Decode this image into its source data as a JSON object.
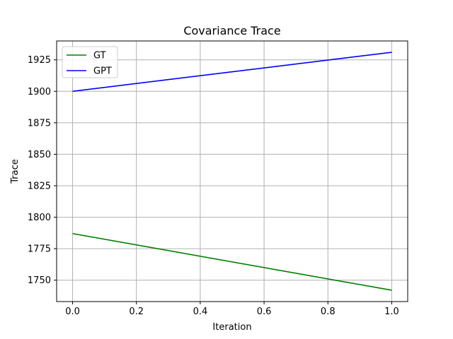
{
  "chart_data": {
    "type": "line",
    "title": "Covariance Trace",
    "xlabel": "Iteration",
    "ylabel": "Trace",
    "xlim": [
      -0.05,
      1.05
    ],
    "ylim": [
      1733,
      1940
    ],
    "xticks": [
      0.0,
      0.2,
      0.4,
      0.6,
      0.8,
      1.0
    ],
    "xtick_labels": [
      "0.0",
      "0.2",
      "0.4",
      "0.6",
      "0.8",
      "1.0"
    ],
    "yticks": [
      1750,
      1775,
      1800,
      1825,
      1850,
      1875,
      1900,
      1925
    ],
    "ytick_labels": [
      "1750",
      "1775",
      "1800",
      "1825",
      "1850",
      "1875",
      "1900",
      "1925"
    ],
    "grid": true,
    "legend_position": "top-left",
    "series": [
      {
        "name": "GT",
        "color": "#008000",
        "x": [
          0,
          1
        ],
        "y": [
          1787,
          1742
        ]
      },
      {
        "name": "GPT",
        "color": "#0000ff",
        "x": [
          0,
          1
        ],
        "y": [
          1900,
          1931
        ]
      }
    ]
  }
}
